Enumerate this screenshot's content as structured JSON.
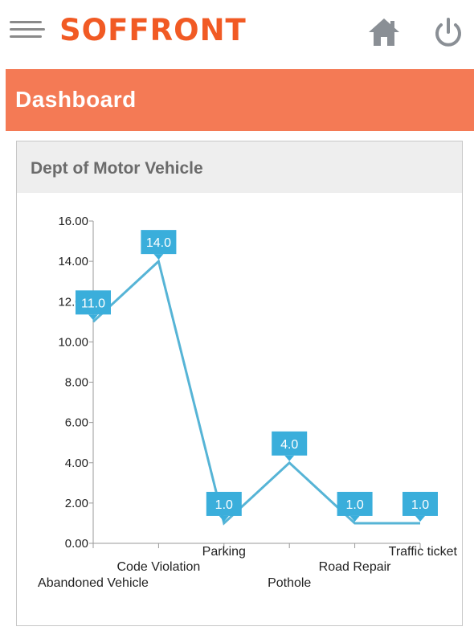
{
  "header": {
    "logo_text": "SOFFRONT",
    "menu_icon": "hamburger-menu-icon",
    "home_icon": "home-icon",
    "power_icon": "power-icon",
    "brand_color": "#f15a24"
  },
  "banner": {
    "title": "Dashboard",
    "color": "#f47a55"
  },
  "card": {
    "title": "Dept of Motor Vehicle"
  },
  "chart_data": {
    "type": "line",
    "categories": [
      "Abandoned Vehicle",
      "Code Violation",
      "Parking",
      "Pothole",
      "Road Repair",
      "Traffic ticket"
    ],
    "values": [
      11.0,
      14.0,
      1.0,
      4.0,
      1.0,
      1.0
    ],
    "data_labels": [
      "11.0",
      "14.0",
      "1.0",
      "4.0",
      "1.0",
      "1.0"
    ],
    "y_ticks": [
      "0.00",
      "2.00",
      "4.00",
      "6.00",
      "8.00",
      "10.00",
      "12.00",
      "14.00",
      "16.00"
    ],
    "ylim": [
      0,
      16
    ],
    "title": "",
    "xlabel": "",
    "ylabel": "",
    "grid": false,
    "line_color": "#56b4d6",
    "label_color": "#3aaedb"
  }
}
